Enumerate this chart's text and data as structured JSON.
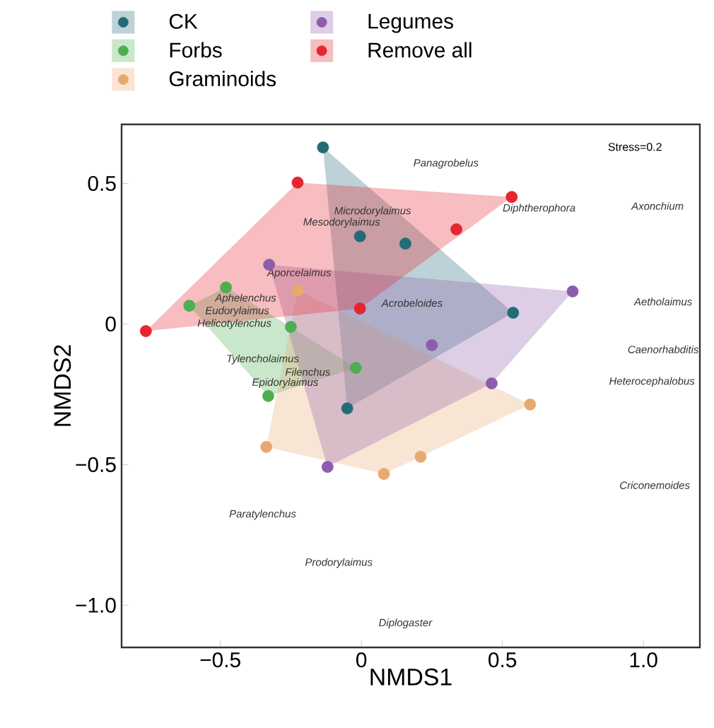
{
  "chart_data": {
    "type": "scatter",
    "xlabel": "NMDS1",
    "ylabel": "NMDS2",
    "xlim": [
      -0.85,
      1.2
    ],
    "ylim": [
      -1.15,
      0.71
    ],
    "xticks": [
      {
        "value": -0.5,
        "label": "−0.5"
      },
      0,
      0.5,
      {
        "value": 1,
        "label": "1.0"
      }
    ],
    "yticks": [
      {
        "value": -1.0,
        "label": "−1.0"
      },
      {
        "value": -0.5,
        "label": "−0.5"
      },
      0,
      0.5
    ],
    "marker": "circle",
    "legend": "top left",
    "grid": false,
    "series": [
      {
        "name": "CK",
        "color": "#246b78",
        "x": [
          -0.136,
          -0.005,
          0.156,
          0.538,
          -0.05
        ],
        "values": [
          0.628,
          0.312,
          0.286,
          0.04,
          -0.3
        ]
      },
      {
        "name": "Forbs",
        "color": "#4caf50",
        "x": [
          -0.48,
          -0.61,
          -0.25,
          -0.02,
          -0.33
        ],
        "values": [
          0.13,
          0.065,
          -0.01,
          -0.156,
          -0.256
        ]
      },
      {
        "name": "Graminoids",
        "color": "#e8a96f",
        "x": [
          -0.226,
          -0.337,
          0.08,
          0.21,
          0.598
        ],
        "values": [
          0.12,
          -0.437,
          -0.533,
          -0.472,
          -0.286
        ]
      },
      {
        "name": "Legumes",
        "color": "#8e5cad",
        "x": [
          -0.327,
          0.25,
          0.462,
          -0.12,
          0.749
        ],
        "values": [
          0.211,
          -0.075,
          -0.211,
          -0.508,
          0.116
        ]
      },
      {
        "name": "Remove all",
        "color": "#e6252f",
        "x": [
          -0.764,
          -0.226,
          0.533,
          0.337,
          -0.005
        ],
        "values": [
          -0.025,
          0.503,
          0.452,
          0.337,
          0.055
        ]
      }
    ],
    "annotations": [
      "Stress=0.2",
      "Panagrobelus",
      "Axonchium",
      "Microdorylaimus",
      "Mesodorylaimus",
      "Diphtherophora",
      "Aporcelaimus",
      "Aphelenchus",
      "Eudorylaimus",
      "Helicotylenchus",
      "Acrobeloides",
      "Aetholaimus",
      "Tylencholaimus",
      "Filenchus",
      "Epidorylaimus",
      "Caenorhabditis",
      "Heterocephalobus",
      "Criconemoides",
      "Paratylenchus",
      "Prodorylaimus",
      "Diplogaster"
    ]
  }
}
